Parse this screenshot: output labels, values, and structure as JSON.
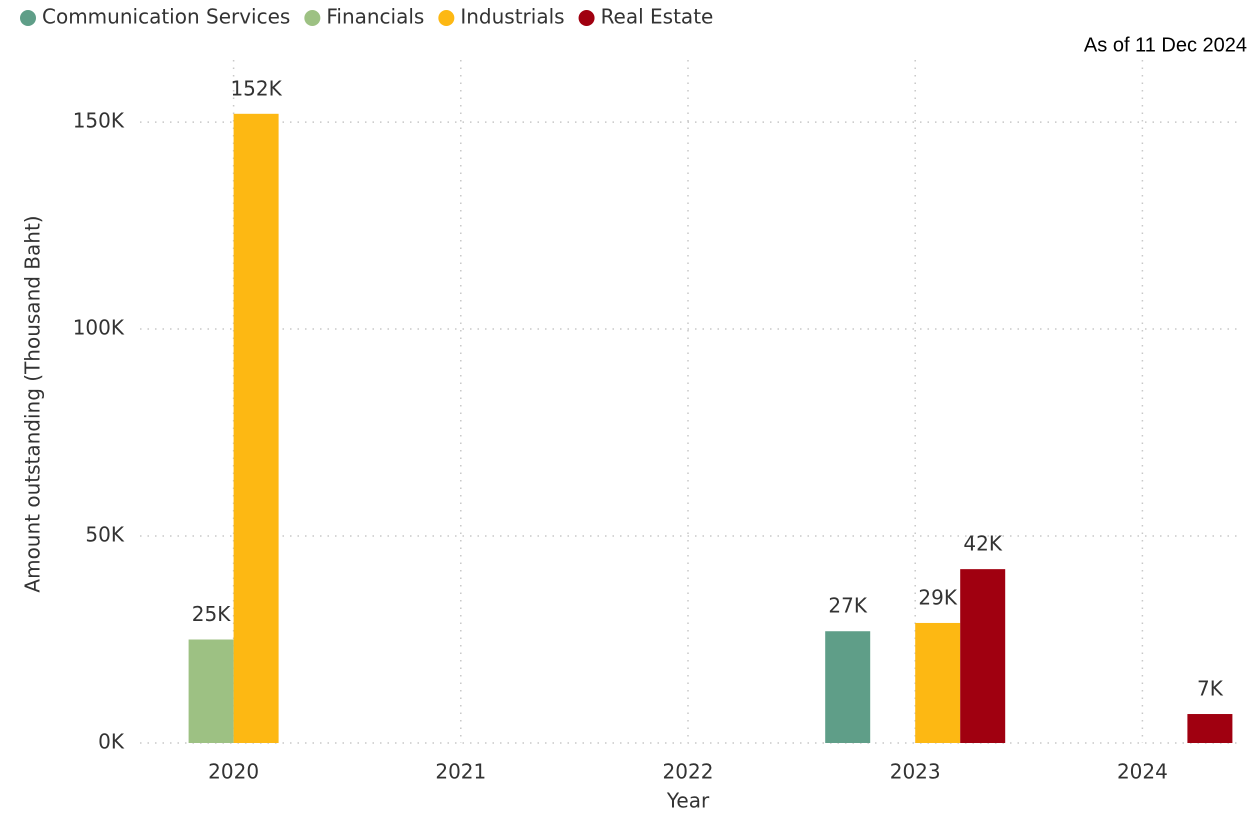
{
  "chart_data": {
    "type": "bar",
    "annotation": "As of 11 Dec 2024",
    "x_label": "Year",
    "y_label": "Amount outstanding (Thousand Baht)",
    "categories": [
      "2020",
      "2021",
      "2022",
      "2023",
      "2024"
    ],
    "series": [
      {
        "name": "Communication Services",
        "color": "#5f9e88",
        "values": [
          null,
          null,
          null,
          27000,
          null
        ],
        "value_labels": [
          null,
          null,
          null,
          "27K",
          null
        ]
      },
      {
        "name": "Financials",
        "color": "#9dc183",
        "values": [
          25000,
          null,
          null,
          null,
          null
        ],
        "value_labels": [
          "25K",
          null,
          null,
          null,
          null
        ]
      },
      {
        "name": "Industrials",
        "color": "#fdb813",
        "values": [
          152000,
          null,
          null,
          29000,
          null
        ],
        "value_labels": [
          "152K",
          null,
          null,
          "29K",
          null
        ]
      },
      {
        "name": "Real Estate",
        "color": "#a00010",
        "values": [
          null,
          null,
          null,
          42000,
          7000
        ],
        "value_labels": [
          null,
          null,
          null,
          "42K",
          "7K"
        ]
      }
    ],
    "ylim": [
      0,
      165000
    ],
    "yticks": [
      {
        "value": 0,
        "label": "0K"
      },
      {
        "value": 50000,
        "label": "50K"
      },
      {
        "value": 100000,
        "label": "100K"
      },
      {
        "value": 150000,
        "label": "150K"
      }
    ],
    "grid": true,
    "legend": "top-left"
  }
}
